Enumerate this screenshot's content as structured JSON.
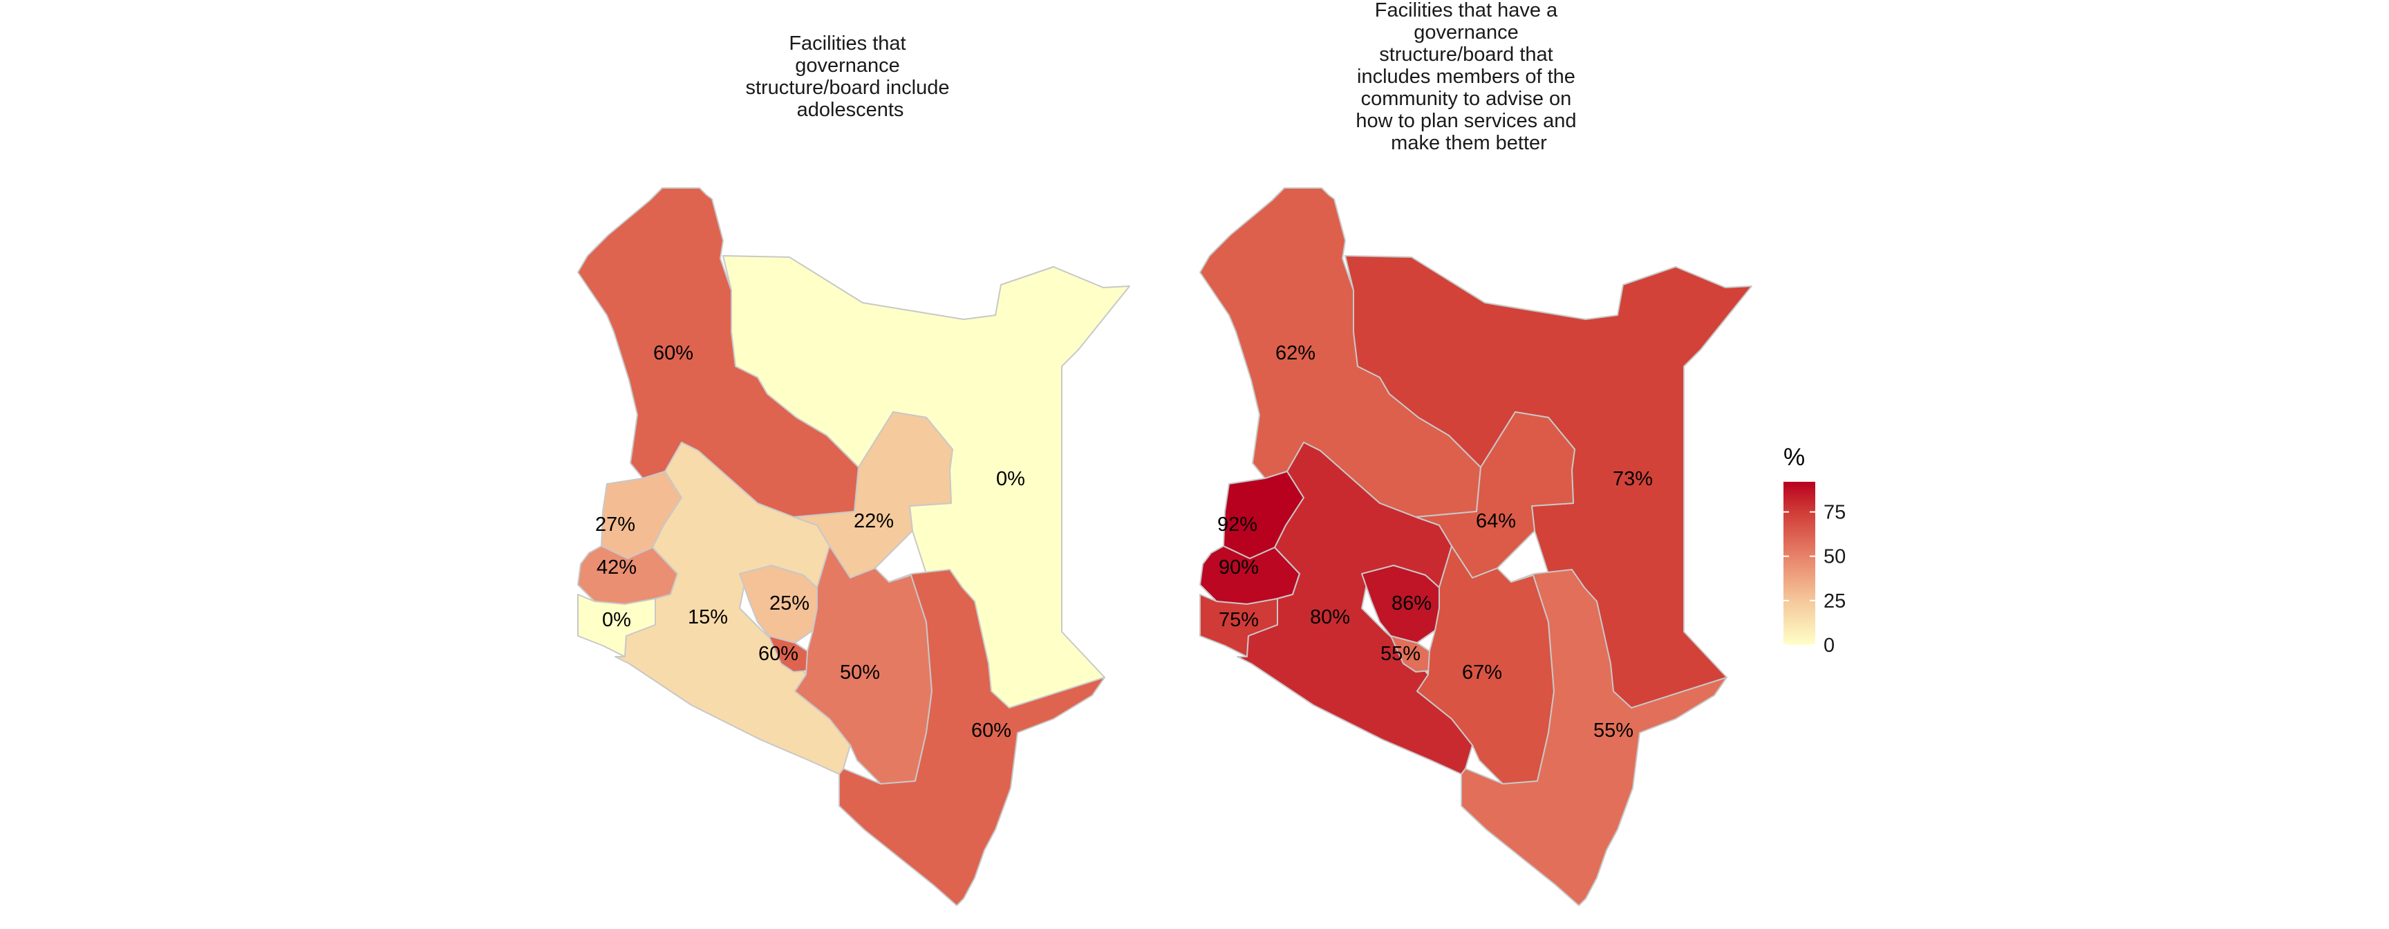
{
  "maps": [
    {
      "id": "adolescents",
      "title_lines": [
        "Facilities that",
        "governance",
        "structure/board include",
        "adolescents"
      ],
      "regions": [
        {
          "name": "northwest",
          "value": 60,
          "label": "60%"
        },
        {
          "name": "northeast",
          "value": 0,
          "label": "0%"
        },
        {
          "name": "north-central",
          "value": 22,
          "label": "22%"
        },
        {
          "name": "western-top",
          "value": 27,
          "label": "27%"
        },
        {
          "name": "western-mid",
          "value": 42,
          "label": "42%"
        },
        {
          "name": "western-bottom",
          "value": 0,
          "label": "0%"
        },
        {
          "name": "rift-valley",
          "value": 15,
          "label": "15%"
        },
        {
          "name": "central",
          "value": 25,
          "label": "25%"
        },
        {
          "name": "nairobi",
          "value": 60,
          "label": "60%"
        },
        {
          "name": "eastern",
          "value": 50,
          "label": "50%"
        },
        {
          "name": "coast",
          "value": 60,
          "label": "60%"
        }
      ]
    },
    {
      "id": "community",
      "title_lines": [
        "Facilities that have a",
        "governance",
        "structure/board that",
        "includes members of the",
        "community to advise on",
        "how to plan services and",
        "make them better"
      ],
      "regions": [
        {
          "name": "northwest",
          "value": 62,
          "label": "62%"
        },
        {
          "name": "northeast",
          "value": 73,
          "label": "73%"
        },
        {
          "name": "north-central",
          "value": 64,
          "label": "64%"
        },
        {
          "name": "western-top",
          "value": 92,
          "label": "92%"
        },
        {
          "name": "western-mid",
          "value": 90,
          "label": "90%"
        },
        {
          "name": "western-bottom",
          "value": 75,
          "label": "75%"
        },
        {
          "name": "rift-valley",
          "value": 80,
          "label": "80%"
        },
        {
          "name": "central",
          "value": 86,
          "label": "86%"
        },
        {
          "name": "nairobi",
          "value": 55,
          "label": "55%"
        },
        {
          "name": "eastern",
          "value": 67,
          "label": "67%"
        },
        {
          "name": "coast",
          "value": 55,
          "label": "55%"
        }
      ]
    }
  ],
  "legend": {
    "title": "%",
    "ticks": [
      {
        "value": 75,
        "label": "75"
      },
      {
        "value": 50,
        "label": "50"
      },
      {
        "value": 25,
        "label": "25"
      },
      {
        "value": 0,
        "label": "0"
      }
    ],
    "min": 0,
    "max": 92,
    "colors": [
      "#ffffc8",
      "#f5c89a",
      "#e8836a",
      "#d8503f",
      "#b8001f"
    ]
  }
}
